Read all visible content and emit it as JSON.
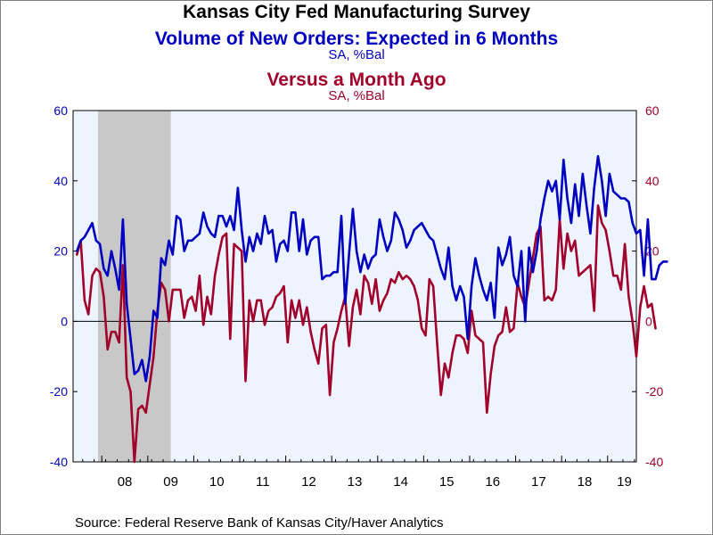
{
  "title": "Kansas City Fed Manufacturing Survey",
  "source": "Source:  Federal Reserve Bank of Kansas City/Haver Analytics",
  "chart_data": {
    "type": "line",
    "ylim": [
      -40,
      60
    ],
    "yticks_left": [
      "60",
      "40",
      "20",
      "0",
      "-20",
      "-40"
    ],
    "yticks_right": [
      "60",
      "40",
      "20",
      "0",
      "-20",
      "-40"
    ],
    "xticks": [
      "08",
      "09",
      "10",
      "11",
      "12",
      "13",
      "14",
      "15",
      "16",
      "17",
      "18",
      "19"
    ],
    "x_start": "2007-06",
    "recession_shading": {
      "start": "2007-12",
      "end": "2009-06",
      "color": "#c8c8c8"
    },
    "plot_background": "#eef4ff",
    "series": [
      {
        "name": "Volume of New Orders: Expected in 6 Months",
        "units": "SA, %Bal",
        "axis": "left",
        "color": "#0000c0",
        "values": [
          20,
          23,
          24,
          26,
          28,
          23,
          22,
          15,
          13,
          20,
          15,
          9,
          29,
          5,
          -5,
          -15,
          -14,
          -11,
          -17,
          -10,
          3,
          1,
          18,
          16,
          23,
          19,
          30,
          29,
          20,
          23,
          23,
          24,
          25,
          31,
          27,
          25,
          24,
          30,
          30,
          27,
          30,
          26,
          38,
          26,
          17,
          24,
          20,
          25,
          22,
          30,
          25,
          26,
          17,
          22,
          23,
          20,
          31,
          31,
          20,
          29,
          19,
          23,
          24,
          24,
          12,
          13,
          13,
          14,
          14,
          30,
          5,
          19,
          32,
          20,
          14,
          19,
          15,
          18,
          19,
          29,
          24,
          20,
          23,
          31,
          29,
          26,
          21,
          23,
          26,
          27,
          28,
          26,
          24,
          23,
          19,
          15,
          12,
          21,
          10,
          6,
          10,
          7,
          -5,
          10,
          18,
          13,
          9,
          6,
          11,
          1,
          21,
          16,
          19,
          24,
          13,
          10,
          20,
          0,
          21,
          14,
          20,
          29,
          35,
          40,
          37,
          40,
          29,
          46,
          35,
          28,
          39,
          30,
          42,
          33,
          25,
          38,
          47,
          40,
          30,
          42,
          37,
          36,
          35,
          35,
          34,
          28,
          25,
          26,
          13,
          29,
          12,
          12,
          16,
          17,
          17
        ]
      },
      {
        "name": "Versus a Month Ago",
        "units": "SA, %Bal",
        "axis": "right",
        "color": "#a0002a",
        "values": [
          19,
          23,
          6,
          2,
          13,
          15,
          14,
          7,
          -8,
          -3,
          -3,
          -6,
          16,
          -16,
          -20,
          -40,
          -25,
          -24,
          -26,
          -18,
          -10,
          3,
          11,
          9,
          0,
          9,
          9,
          9,
          1,
          6,
          7,
          3,
          13,
          -1,
          7,
          2,
          13,
          19,
          24,
          25,
          -5,
          22,
          21,
          20,
          -17,
          6,
          0,
          6,
          6,
          -1,
          3,
          4,
          7,
          8,
          10,
          -6,
          6,
          1,
          6,
          -1,
          4,
          -3,
          -8,
          -12,
          -2,
          -1,
          -21,
          -6,
          -2,
          3,
          7,
          -7,
          4,
          9,
          2,
          13,
          11,
          5,
          12,
          3,
          6,
          8,
          12,
          11,
          14,
          12,
          13,
          12,
          10,
          6,
          -2,
          -4,
          12,
          10,
          -6,
          -21,
          -12,
          -16,
          -9,
          -4,
          -4,
          -5,
          -9,
          3,
          -4,
          -5,
          -6,
          -26,
          -15,
          -7,
          -4,
          -3,
          4,
          -3,
          -2,
          11,
          7,
          4,
          11,
          18,
          25,
          27,
          6,
          7,
          6,
          9,
          29,
          15,
          25,
          20,
          23,
          13,
          14,
          15,
          16,
          3,
          33,
          28,
          26,
          20,
          13,
          13,
          9,
          22,
          7,
          0,
          -10,
          4,
          10,
          4,
          5,
          -2
        ]
      }
    ]
  }
}
